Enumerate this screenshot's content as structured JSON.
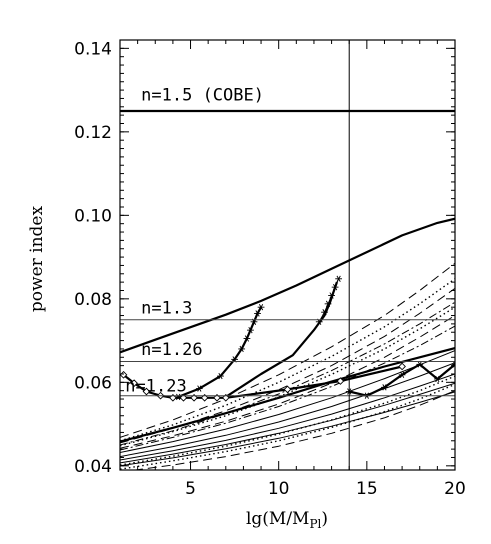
{
  "chart_data": {
    "type": "line",
    "title": "",
    "xlabel": "lg(M/M",
    "xlabel_sub": "Pl",
    "xlabel_close": ")",
    "ylabel": "power index",
    "xlim": [
      1,
      20
    ],
    "ylim": [
      0.039,
      0.142
    ],
    "xticks": [
      5,
      10,
      15,
      20
    ],
    "yticks": [
      0.04,
      0.06,
      0.08,
      0.1,
      0.12,
      0.14
    ],
    "ytick_labels": [
      "0.04",
      "0.06",
      "0.08",
      "0.10",
      "0.12",
      "0.14"
    ],
    "grid": false,
    "vertical_line_x": 14,
    "reference_lines": [
      {
        "label": "n=1.5 (COBE)",
        "y": 0.125,
        "label_x": 2.2,
        "label_y": 0.1275,
        "style": "thick"
      },
      {
        "label": "n=1.3",
        "y": 0.075,
        "label_x": 2.2,
        "label_y": 0.0765,
        "style": "thin"
      },
      {
        "label": "n=1.26",
        "y": 0.065,
        "label_x": 2.2,
        "label_y": 0.0665,
        "style": "thin"
      },
      {
        "label": "n=1.23",
        "y": 0.0568,
        "label_x": 1.3,
        "label_y": 0.0578,
        "style": "thin"
      }
    ],
    "series": [
      {
        "style": "thick",
        "x": [
          1,
          3,
          5,
          7,
          9,
          11,
          13,
          15,
          17,
          19,
          20
        ],
        "y": [
          0.0672,
          0.0702,
          0.0732,
          0.0762,
          0.0795,
          0.0832,
          0.0872,
          0.0912,
          0.0952,
          0.0982,
          0.0992
        ]
      },
      {
        "style": "thick",
        "x": [
          1,
          4,
          7,
          10,
          13,
          16,
          18,
          20
        ],
        "y": [
          0.0458,
          0.0491,
          0.0526,
          0.0563,
          0.0602,
          0.0638,
          0.066,
          0.0682
        ]
      },
      {
        "style": "dash",
        "x": [
          1,
          4,
          7,
          10,
          13,
          16,
          18,
          20
        ],
        "y": [
          0.0468,
          0.051,
          0.056,
          0.0618,
          0.0685,
          0.076,
          0.082,
          0.0885
        ]
      },
      {
        "style": "dash",
        "x": [
          1,
          4,
          7,
          10,
          13,
          16,
          18,
          20
        ],
        "y": [
          0.0455,
          0.049,
          0.0532,
          0.0582,
          0.064,
          0.071,
          0.0765,
          0.0825
        ]
      },
      {
        "style": "dash",
        "x": [
          1,
          4,
          7,
          10,
          13,
          16,
          18,
          20
        ],
        "y": [
          0.0442,
          0.0472,
          0.0507,
          0.0548,
          0.0598,
          0.066,
          0.0708,
          0.076
        ]
      },
      {
        "style": "dash",
        "x": [
          1,
          4,
          7,
          10,
          13,
          16,
          18,
          20
        ],
        "y": [
          0.0385,
          0.0402,
          0.0422,
          0.0447,
          0.0478,
          0.0515,
          0.0545,
          0.058
        ]
      },
      {
        "style": "dot",
        "x": [
          1,
          4,
          7,
          10,
          13,
          16,
          18,
          20
        ],
        "y": [
          0.046,
          0.0498,
          0.0545,
          0.06,
          0.0662,
          0.0733,
          0.0788,
          0.0848
        ]
      },
      {
        "style": "dot",
        "x": [
          1,
          4,
          7,
          10,
          13,
          16,
          18,
          20
        ],
        "y": [
          0.0448,
          0.0482,
          0.052,
          0.0565,
          0.0619,
          0.068,
          0.0728,
          0.078
        ]
      },
      {
        "style": "dot",
        "x": [
          1,
          4,
          7,
          10,
          13,
          16,
          18,
          20
        ],
        "y": [
          0.0392,
          0.0412,
          0.0434,
          0.046,
          0.0492,
          0.053,
          0.056,
          0.0595
        ]
      },
      {
        "style": "dot",
        "x": [
          1,
          4,
          7,
          10,
          13,
          16,
          18,
          20
        ],
        "y": [
          0.0402,
          0.0423,
          0.0447,
          0.0476,
          0.051,
          0.055,
          0.058,
          0.0615
        ]
      },
      {
        "style": "dashdot",
        "x": [
          1,
          4,
          7,
          10,
          13,
          16,
          18,
          20
        ],
        "y": [
          0.045,
          0.0484,
          0.0525,
          0.0572,
          0.0628,
          0.0692,
          0.074,
          0.0792
        ]
      },
      {
        "style": "dashdot",
        "x": [
          1,
          4,
          7,
          10,
          13,
          16,
          18,
          20
        ],
        "y": [
          0.0438,
          0.0468,
          0.0502,
          0.0542,
          0.059,
          0.0646,
          0.0688,
          0.0735
        ]
      },
      {
        "style": "thin",
        "x": [
          1,
          4,
          7,
          10,
          13,
          16,
          18,
          20
        ],
        "y": [
          0.0432,
          0.0458,
          0.0488,
          0.0523,
          0.0563,
          0.0609,
          0.0642,
          0.0676
        ]
      },
      {
        "style": "thin",
        "x": [
          1,
          4,
          7,
          10,
          13,
          16,
          18,
          20
        ],
        "y": [
          0.0422,
          0.0446,
          0.0473,
          0.0505,
          0.0542,
          0.0585,
          0.0615,
          0.0647
        ]
      },
      {
        "style": "thin",
        "x": [
          1,
          4,
          7,
          10,
          13,
          16,
          18,
          20
        ],
        "y": [
          0.0414,
          0.0436,
          0.0461,
          0.049,
          0.0524,
          0.0563,
          0.0591,
          0.062
        ]
      },
      {
        "style": "thin",
        "x": [
          1,
          4,
          7,
          10,
          13,
          16,
          18,
          20
        ],
        "y": [
          0.0407,
          0.0428,
          0.0451,
          0.0478,
          0.0509,
          0.0545,
          0.0571,
          0.0598
        ]
      },
      {
        "style": "thin",
        "x": [
          1,
          4,
          7,
          10,
          13,
          16,
          18,
          20
        ],
        "y": [
          0.04,
          0.0419,
          0.0441,
          0.0466,
          0.0495,
          0.0528,
          0.0552,
          0.0577
        ]
      },
      {
        "style": "thick",
        "marker": "star",
        "x": [
          4.3,
          5.5,
          6.7,
          7.5,
          7.9,
          8.2,
          8.4,
          8.6,
          8.8,
          9.0
        ],
        "y": [
          0.0565,
          0.0585,
          0.0615,
          0.0655,
          0.068,
          0.0705,
          0.0725,
          0.0745,
          0.0765,
          0.078
        ]
      },
      {
        "style": "thick",
        "marker": "none",
        "x": [
          7.0,
          9.0,
          10.8,
          12.0,
          12.6,
          12.9,
          13.1,
          13.3
        ],
        "y": [
          0.0565,
          0.062,
          0.0665,
          0.0725,
          0.076,
          0.079,
          0.0815,
          0.084
        ]
      },
      {
        "style": "thin",
        "marker": "star",
        "x": [
          12.3,
          12.6,
          12.8,
          13.0,
          13.2,
          13.4
        ],
        "y": [
          0.0745,
          0.0768,
          0.0788,
          0.0808,
          0.0828,
          0.0848
        ]
      },
      {
        "style": "thick",
        "marker": "diamond",
        "x": [
          1.2,
          1.8,
          2.5,
          3.3,
          4.0,
          4.6,
          5.2,
          5.8,
          6.5,
          7.0,
          10.5,
          13.5,
          17.0
        ],
        "y": [
          0.0618,
          0.0598,
          0.0578,
          0.0568,
          0.0563,
          0.0563,
          0.0563,
          0.0563,
          0.0563,
          0.0563,
          0.0583,
          0.0603,
          0.0638
        ]
      },
      {
        "style": "thick",
        "marker": "star",
        "x": [
          14.0,
          15.0,
          16.0,
          17.0,
          18.0,
          19.0,
          20.0
        ],
        "y": [
          0.0578,
          0.0568,
          0.0588,
          0.0618,
          0.0643,
          0.0608,
          0.0643
        ]
      }
    ]
  }
}
